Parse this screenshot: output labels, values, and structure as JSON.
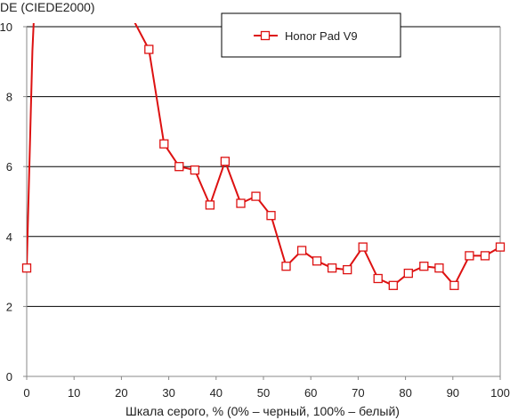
{
  "chart_data": {
    "type": "line",
    "title": "",
    "ylabel": "DE (CIEDE2000)",
    "xlabel": "Шкала серого, % (0% – черный, 100% – белый)",
    "xlim": [
      0,
      100
    ],
    "ylim": [
      0,
      10
    ],
    "x_ticks": [
      "0",
      "10",
      "20",
      "30",
      "40",
      "50",
      "60",
      "70",
      "80",
      "90",
      "100"
    ],
    "y_ticks": [
      "0",
      "2",
      "4",
      "6",
      "8",
      "10"
    ],
    "grid": "horizontal",
    "legend_position": "top-right",
    "colors": {
      "series": "#dd1111",
      "grid": "#000000",
      "axis": "#888888"
    },
    "series": [
      {
        "name": "Honor Pad V9",
        "marker": "square",
        "points": [
          [
            0,
            3.1
          ],
          [
            1.2,
            9.3
          ],
          [
            1.5,
            10.2
          ],
          [
            22.5,
            10.2
          ],
          [
            25.8,
            9.35
          ],
          [
            29.0,
            6.65
          ],
          [
            32.2,
            6.0
          ],
          [
            35.5,
            5.9
          ],
          [
            38.7,
            4.9
          ],
          [
            41.9,
            6.15
          ],
          [
            45.2,
            4.95
          ],
          [
            48.4,
            5.15
          ],
          [
            51.6,
            4.6
          ],
          [
            54.8,
            3.15
          ],
          [
            58.1,
            3.6
          ],
          [
            61.3,
            3.3
          ],
          [
            64.5,
            3.1
          ],
          [
            67.7,
            3.05
          ],
          [
            71.0,
            3.7
          ],
          [
            74.2,
            2.8
          ],
          [
            77.4,
            2.6
          ],
          [
            80.6,
            2.95
          ],
          [
            83.9,
            3.15
          ],
          [
            87.1,
            3.1
          ],
          [
            90.3,
            2.6
          ],
          [
            93.5,
            3.45
          ],
          [
            96.8,
            3.45
          ],
          [
            100,
            3.7
          ]
        ],
        "marked": [
          0,
          4,
          5,
          6,
          7,
          8,
          9,
          10,
          11,
          12,
          13,
          14,
          15,
          16,
          17,
          18,
          19,
          20,
          21,
          22,
          23,
          24,
          25,
          26,
          27
        ]
      }
    ]
  }
}
